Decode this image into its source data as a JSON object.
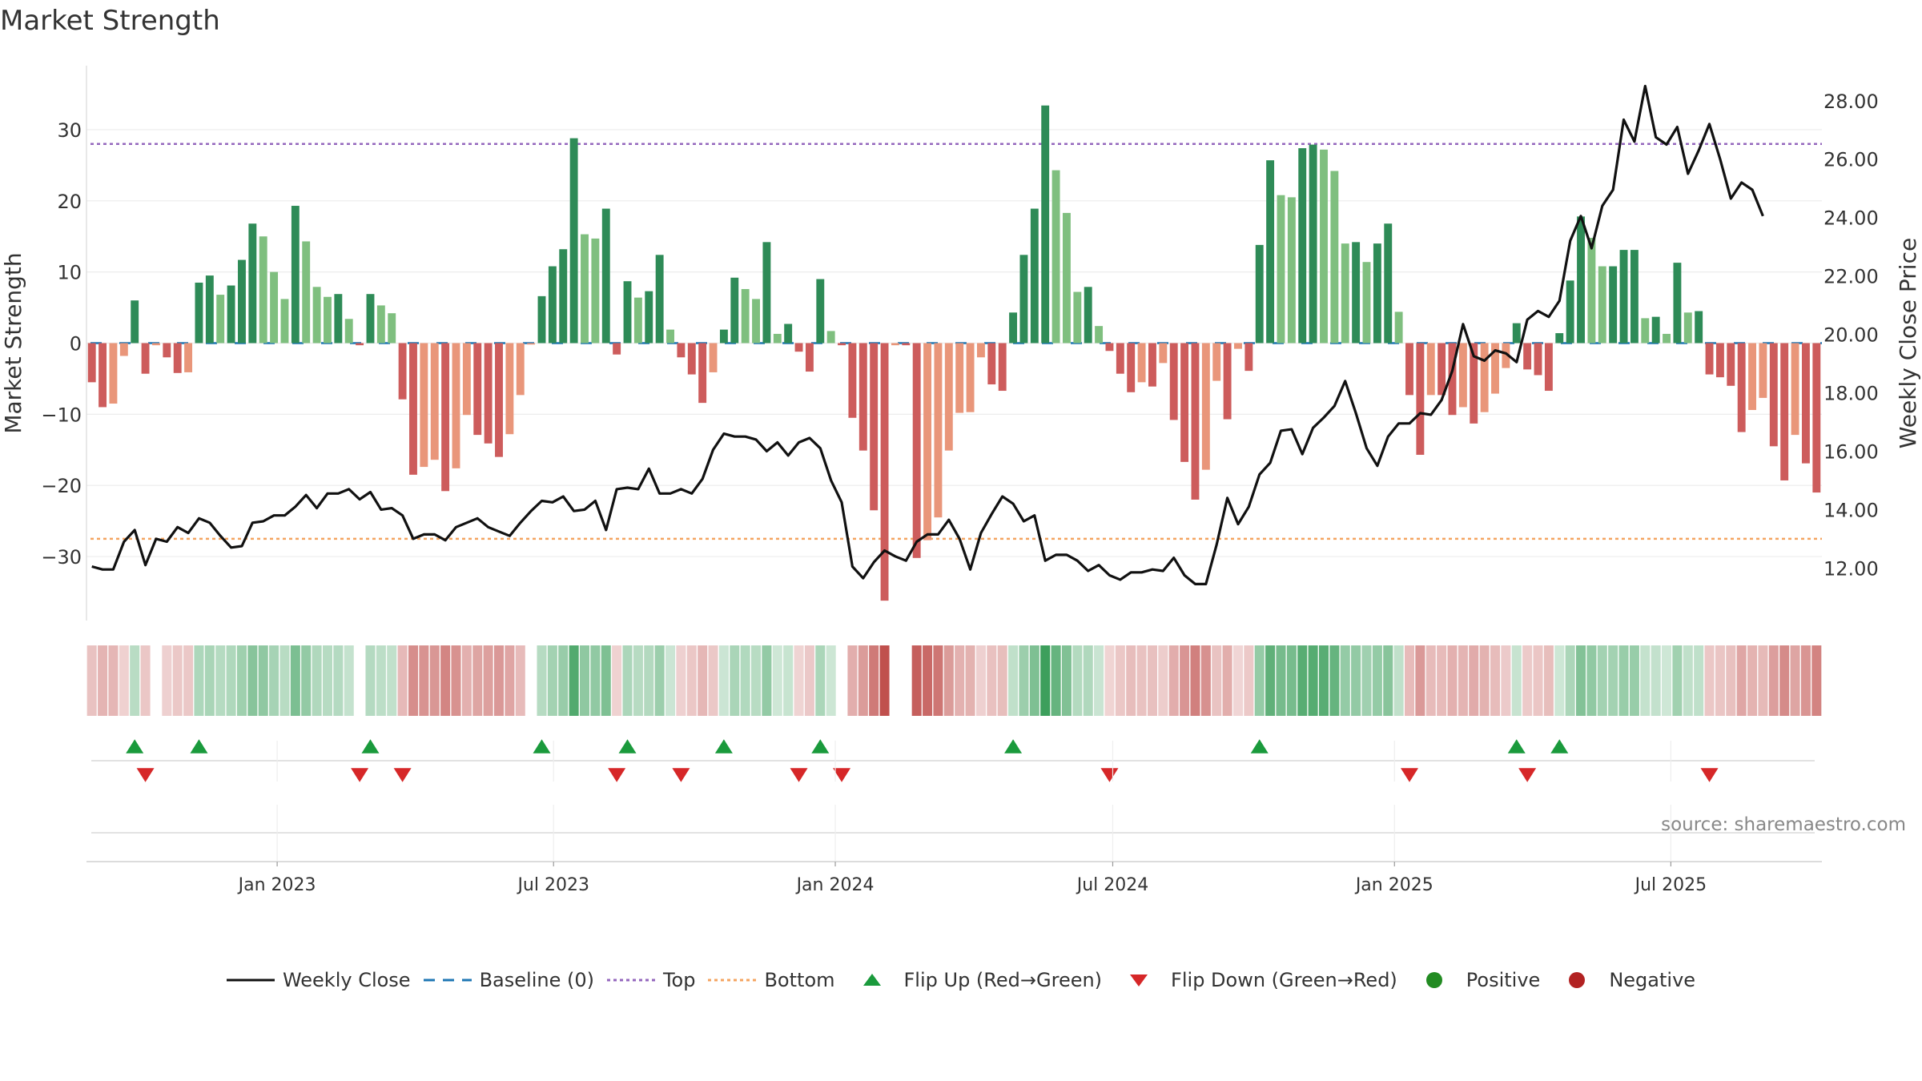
{
  "title": "Market Strength",
  "source": "source: sharemaestro.com",
  "colors": {
    "strong_green": "#2e8b57",
    "light_green": "#7fbf7f",
    "strong_red": "#cd5c5c",
    "light_red": "#e9967a",
    "close_line": "#111111",
    "baseline": "#1f77b4",
    "top_line": "#9467bd",
    "bottom_line": "#f4a460",
    "flip_up": "#1a9a3c",
    "flip_down": "#d62728",
    "positive": "#228b22",
    "negative": "#b22222"
  },
  "legend": [
    {
      "label": "Weekly Close",
      "icon": "line-solid-icon",
      "color": "#111111"
    },
    {
      "label": "Baseline (0)",
      "icon": "line-dashed-icon",
      "color": "#1f77b4"
    },
    {
      "label": "Top",
      "icon": "line-dotted-icon",
      "color": "#9467bd"
    },
    {
      "label": "Bottom",
      "icon": "line-dotted-icon",
      "color": "#f4a460"
    },
    {
      "label": "Flip Up (Red→Green)",
      "icon": "triangle-up-icon",
      "color": "#1a9a3c"
    },
    {
      "label": "Flip Down (Green→Red)",
      "icon": "triangle-down-icon",
      "color": "#d62728"
    },
    {
      "label": "Positive",
      "icon": "circle-icon",
      "color": "#228b22"
    },
    {
      "label": "Negative",
      "icon": "circle-icon",
      "color": "#b22222"
    }
  ],
  "chart_data": {
    "type": "bar+line",
    "title": "Market Strength",
    "ylabel": "Market Strength",
    "y2label": "Weekly Close Price",
    "ylim": [
      -39,
      39
    ],
    "y2lim": [
      10.2,
      29.2
    ],
    "yticks": [
      -30,
      -20,
      -10,
      0,
      10,
      20,
      30
    ],
    "y2ticks": [
      "12.00",
      "14.00",
      "16.00",
      "18.00",
      "20.00",
      "22.00",
      "24.00",
      "26.00",
      "28.00"
    ],
    "x_tick_labels": [
      "Jan 2023",
      "Jul 2023",
      "Jan 2024",
      "Jul 2024",
      "Jan 2025",
      "Jul 2025"
    ],
    "x_tick_weeks": [
      17.3,
      43.1,
      69.4,
      95.3,
      121.6,
      147.4
    ],
    "top_level": 28,
    "bottom_level": -27.5,
    "strength": [
      -5.5,
      -9,
      -8.5,
      -1.8,
      6,
      -4.3,
      -0.3,
      -2,
      -4.2,
      -4.1,
      8.5,
      9.5,
      6.8,
      8.1,
      11.7,
      16.8,
      15,
      10,
      6.2,
      19.3,
      14.3,
      7.9,
      6.5,
      6.9,
      3.4,
      -0.3,
      6.9,
      5.3,
      4.2,
      -7.9,
      -18.5,
      -17.4,
      -16.4,
      -20.8,
      -17.6,
      -10.1,
      -12.9,
      -14.1,
      -16,
      -12.8,
      -7.3,
      -0.2,
      6.6,
      10.8,
      13.2,
      28.8,
      15.3,
      14.7,
      18.9,
      -1.6,
      8.7,
      6.4,
      7.3,
      12.4,
      1.9,
      -2,
      -4.4,
      -8.4,
      -4.1,
      1.9,
      9.2,
      7.6,
      6.2,
      14.2,
      1.3,
      2.7,
      -1.2,
      -4,
      9,
      1.7,
      -0.3,
      -10.5,
      -15.1,
      -23.5,
      -36.2,
      -0.3,
      -0.3,
      -30.2,
      -27.7,
      -24.5,
      -15.1,
      -9.8,
      -9.7,
      -2,
      -5.8,
      -6.7,
      4.3,
      12.4,
      18.9,
      33.4,
      24.3,
      18.3,
      7.2,
      7.9,
      2.4,
      -1.1,
      -4.3,
      -6.9,
      -5.5,
      -6.1,
      -2.8,
      -10.8,
      -16.7,
      -22,
      -17.8,
      -5.3,
      -10.7,
      -0.8,
      -3.9,
      13.8,
      25.7,
      20.8,
      20.5,
      27.4,
      27.9,
      27.2,
      24.2,
      14,
      14.2,
      11.4,
      14,
      16.8,
      4.4,
      -7.3,
      -15.7,
      -7.3,
      -7.3,
      -10.1,
      -9,
      -11.3,
      -9.7,
      -7.1,
      -3.5,
      2.8,
      -3.7,
      -4.5,
      -6.7,
      1.4,
      8.8,
      17.8,
      14.8,
      10.8,
      10.8,
      13.1,
      13.1,
      3.5,
      3.7,
      1.3,
      11.3,
      4.3,
      4.5,
      -4.4,
      -4.8,
      -6,
      -12.5,
      -9.4,
      -7.7,
      -14.5,
      -19.3,
      -12.9,
      -16.9,
      -21
    ],
    "close": [
      12.05,
      11.95,
      11.95,
      12.9,
      13.3,
      12.1,
      13.0,
      12.9,
      13.4,
      13.2,
      13.7,
      13.55,
      13.1,
      12.7,
      12.75,
      13.55,
      13.6,
      13.8,
      13.8,
      14.1,
      14.5,
      14.05,
      14.55,
      14.55,
      14.7,
      14.35,
      14.6,
      14.0,
      14.05,
      13.8,
      13.0,
      13.15,
      13.15,
      12.95,
      13.4,
      13.55,
      13.7,
      13.4,
      13.25,
      13.1,
      13.55,
      13.95,
      14.3,
      14.25,
      14.45,
      13.95,
      14.0,
      14.3,
      13.3,
      14.7,
      14.75,
      14.7,
      15.4,
      14.55,
      14.55,
      14.7,
      14.55,
      15.05,
      16.05,
      16.6,
      16.5,
      16.5,
      16.4,
      16.0,
      16.3,
      15.85,
      16.3,
      16.45,
      16.1,
      15.0,
      14.25,
      12.05,
      11.65,
      12.2,
      12.6,
      12.4,
      12.25,
      12.9,
      13.15,
      13.15,
      13.65,
      13.0,
      11.95,
      13.2,
      13.85,
      14.45,
      14.2,
      13.6,
      13.8,
      12.25,
      12.45,
      12.45,
      12.25,
      11.9,
      12.1,
      11.75,
      11.6,
      11.85,
      11.85,
      11.95,
      11.9,
      12.35,
      11.75,
      11.45,
      11.45,
      12.8,
      14.4,
      13.5,
      14.1,
      15.2,
      15.6,
      16.7,
      16.75,
      15.9,
      16.8,
      17.15,
      17.55,
      18.4,
      17.3,
      16.1,
      15.5,
      16.5,
      16.95,
      16.95,
      17.3,
      17.25,
      17.75,
      18.75,
      20.35,
      19.25,
      19.1,
      19.45,
      19.35,
      19.05,
      20.5,
      20.8,
      20.6,
      21.15,
      23.2,
      24.05,
      22.95,
      24.4,
      24.95,
      27.35,
      26.6,
      28.5,
      26.75,
      26.5,
      27.1,
      25.5,
      26.3,
      27.2,
      26.0,
      24.65,
      25.2,
      24.95,
      24.05
    ]
  }
}
